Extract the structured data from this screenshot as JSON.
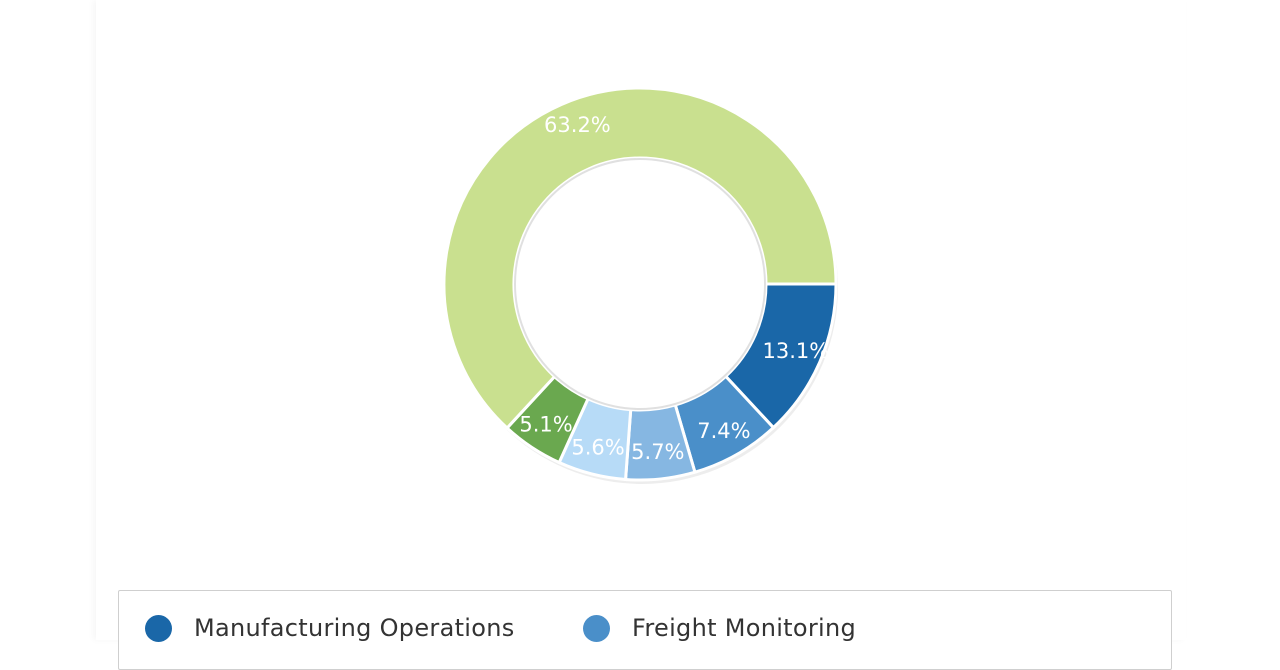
{
  "chart_data": {
    "type": "pie",
    "subtype": "donut",
    "slices": [
      {
        "label": "Manufacturing Operations",
        "value": 13.1,
        "display": "13.1%",
        "color": "#1a67a8"
      },
      {
        "label": "Freight Monitoring",
        "value": 7.4,
        "display": "7.4%",
        "color": "#4a8fc9"
      },
      {
        "label": "",
        "value": 5.7,
        "display": "5.7%",
        "color": "#86b7e2"
      },
      {
        "label": "",
        "value": 5.6,
        "display": "5.6%",
        "color": "#b7dbf7"
      },
      {
        "label": "",
        "value": 5.1,
        "display": "5.1%",
        "color": "#6aa84f"
      },
      {
        "label": "",
        "value": 63.2,
        "display": "63.2%",
        "color": "#c9e08f"
      }
    ],
    "legend": {
      "placement": "bottom",
      "entries": [
        "Manufacturing Operations",
        "Freight Monitoring"
      ]
    }
  }
}
